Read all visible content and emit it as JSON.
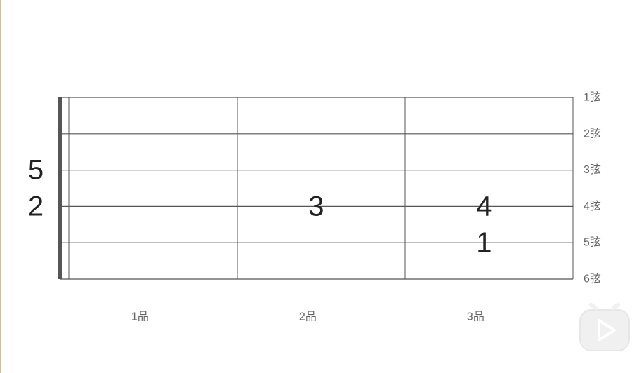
{
  "diagram": {
    "string_labels": [
      "1弦",
      "2弦",
      "3弦",
      "4弦",
      "5弦",
      "6弦"
    ],
    "fret_labels": [
      "1品",
      "2品",
      "3品"
    ],
    "open_string_numbers": [
      {
        "string": 3,
        "label": "5"
      },
      {
        "string": 4,
        "label": "2"
      }
    ],
    "fingerings": [
      {
        "string": 4,
        "fret": 2,
        "label": "3"
      },
      {
        "string": 4,
        "fret": 3,
        "label": "4"
      },
      {
        "string": 5,
        "fret": 3,
        "label": "1"
      }
    ]
  },
  "colors": {
    "line": "#555555",
    "nut": "#555555",
    "text": "#222222",
    "label": "#666666",
    "left_edge": "#e7b98a",
    "logo": "#f0f0f0"
  },
  "icons": {
    "corner_logo": "video-play-icon"
  }
}
